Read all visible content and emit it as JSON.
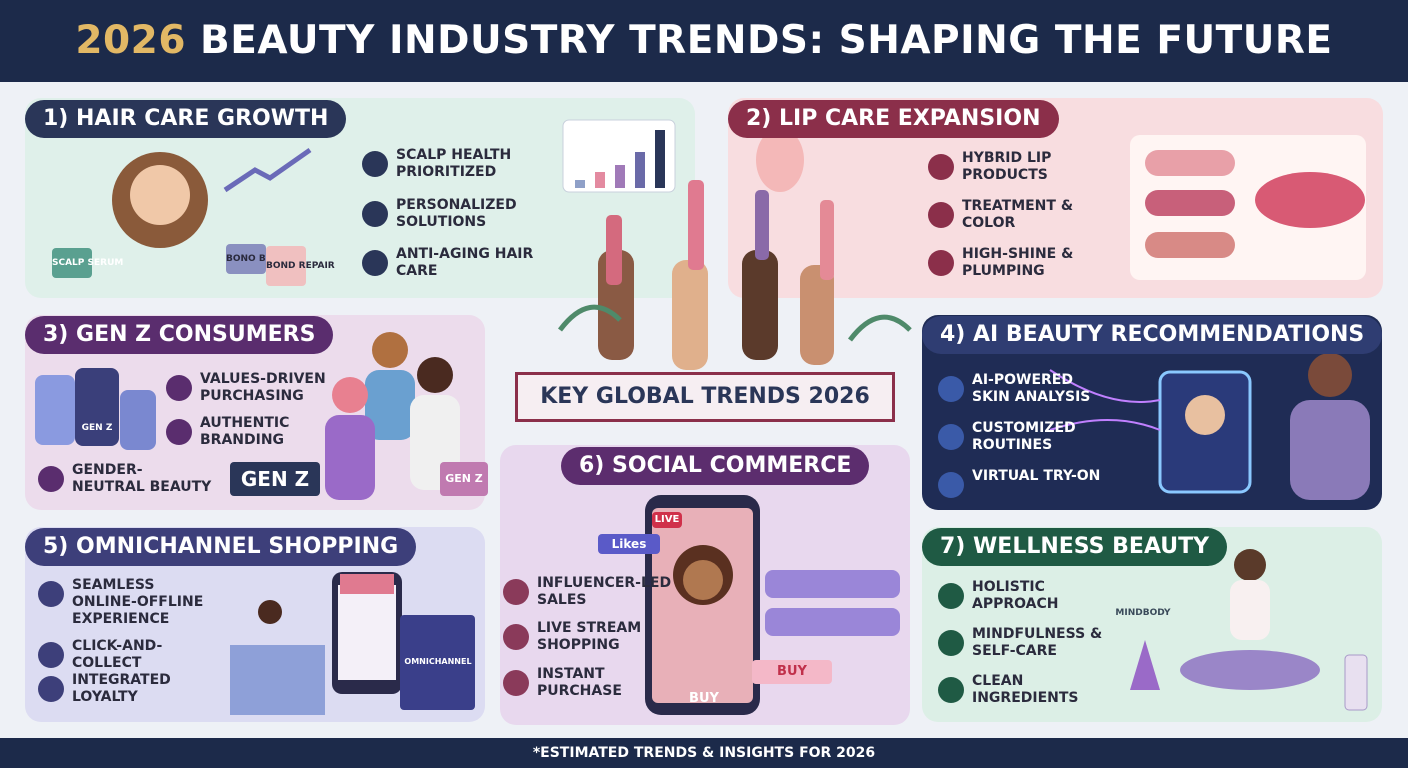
{
  "header": {
    "year": "2026",
    "title": "BEAUTY INDUSTRY TRENDS: SHAPING THE FUTURE"
  },
  "center_banner": "KEY GLOBAL TRENDS 2026",
  "sections": [
    {
      "title": "1) HAIR CARE GROWTH",
      "items": [
        "SCALP HEALTH PRIORITIZED",
        "PERSONALIZED SOLUTIONS",
        "ANTI-AGING HAIR CARE"
      ],
      "labels": [
        "SCALP SERUM",
        "BONO BERAIR",
        "BOND REPAIR"
      ]
    },
    {
      "title": "2) LIP CARE EXPANSION",
      "items": [
        "HYBRID LIP PRODUCTS",
        "TREATMENT & COLOR",
        "HIGH-SHINE & PLUMPING"
      ],
      "labels": []
    },
    {
      "title": "3) GEN Z CONSUMERS",
      "items": [
        "VALUES-DRIVEN PURCHASING",
        "AUTHENTIC BRANDING",
        "GENDER-NEUTRAL BEAUTY"
      ],
      "labels": [
        "GEN Z",
        "GEN Z",
        "GEN Z"
      ]
    },
    {
      "title": "4) AI BEAUTY RECOMMENDATIONS",
      "items": [
        "AI-POWERED SKIN ANALYSIS",
        "CUSTOMIZED ROUTINES",
        "VIRTUAL TRY-ON"
      ],
      "labels": []
    },
    {
      "title": "5) OMNICHANNEL SHOPPING",
      "items": [
        "SEAMLESS ONLINE-OFFLINE EXPERIENCE",
        "CLICK-AND-COLLECT",
        "INTEGRATED LOYALTY"
      ],
      "labels": [
        "OMNICHANNEL"
      ]
    },
    {
      "title": "6) SOCIAL COMMERCE",
      "items": [
        "INFLUENCER-LED SALES",
        "LIVE STREAM SHOPPING",
        "INSTANT PURCHASE"
      ],
      "labels": [
        "LIVE",
        "Likes",
        "BUY",
        "BUY"
      ]
    },
    {
      "title": "7) WELLNESS BEAUTY",
      "items": [
        "HOLISTIC APPROACH",
        "MINDFULNESS & SELF-CARE",
        "CLEAN INGREDIENTS"
      ],
      "labels": [
        "MINDBODY"
      ]
    }
  ],
  "footer": "*ESTIMATED TRENDS & INSIGHTS FOR 2026"
}
